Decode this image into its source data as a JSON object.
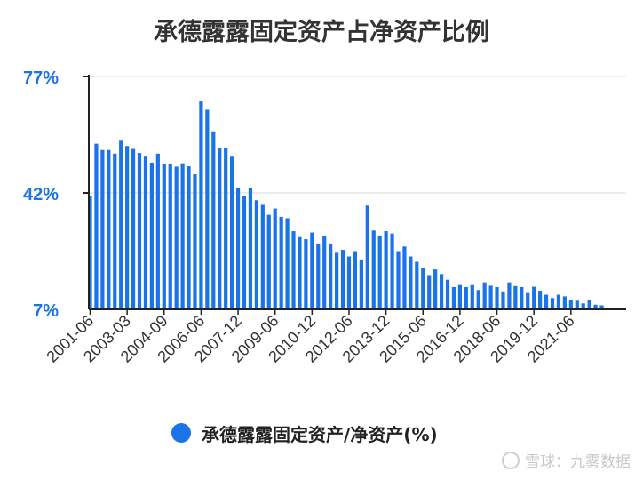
{
  "title": "承德露露固定资产占净资产比例",
  "legend": {
    "label": "承德露露固定资产/净资产(%)"
  },
  "watermark": {
    "text": "雪球：九雾数据"
  },
  "colors": {
    "bar": "#1a73e8",
    "ytick": "#1a73e8",
    "axis": "#222222",
    "grid": "#d9d9d9",
    "title": "#333333"
  },
  "chart_data": {
    "type": "bar",
    "title": "承德露露固定资产占净资产比例",
    "series": [
      {
        "name": "承德露露固定资产/净资产(%)",
        "values": [
          41.0,
          56.8,
          54.9,
          54.9,
          53.8,
          57.7,
          56.1,
          55.2,
          54.0,
          52.9,
          51.1,
          53.8,
          50.7,
          50.8,
          49.9,
          50.9,
          50.0,
          47.6,
          69.5,
          67.0,
          60.5,
          55.4,
          55.4,
          52.9,
          43.6,
          41.1,
          43.6,
          39.8,
          38.4,
          35.4,
          37.3,
          34.8,
          34.4,
          30.5,
          28.7,
          28.1,
          30.1,
          26.8,
          29.0,
          26.8,
          24.0,
          24.9,
          22.9,
          24.5,
          22.0,
          38.2,
          30.7,
          29.2,
          30.5,
          29.8,
          24.5,
          25.9,
          22.9,
          21.3,
          19.3,
          17.3,
          19.0,
          17.6,
          15.9,
          13.7,
          14.3,
          13.7,
          14.3,
          12.8,
          15.1,
          14.1,
          13.7,
          12.4,
          15.1,
          14.0,
          13.7,
          11.9,
          13.8,
          12.6,
          11.4,
          10.4,
          11.4,
          10.9,
          9.8,
          9.6,
          8.8,
          9.8,
          8.4,
          8.2
        ]
      }
    ],
    "x_tick_labels": [
      "2001-06",
      "2003-03",
      "2004-09",
      "2006-06",
      "2007-12",
      "2009-06",
      "2010-12",
      "2012-06",
      "2013-12",
      "2015-06",
      "2016-12",
      "2018-06",
      "2019-12",
      "2021-06"
    ],
    "y_tick_labels": [
      "77%",
      "42%",
      "7%"
    ],
    "ylim": [
      7,
      77
    ],
    "grid": true,
    "legend_position": "bottom-center"
  }
}
